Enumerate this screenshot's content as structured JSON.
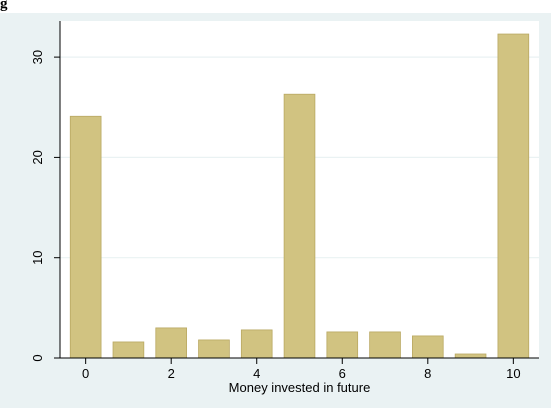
{
  "page": {
    "title": "g"
  },
  "chart_data": {
    "type": "bar",
    "x": [
      0,
      1,
      2,
      3,
      4,
      5,
      6,
      7,
      8,
      9,
      10
    ],
    "values": [
      24.1,
      1.6,
      3.0,
      1.8,
      2.8,
      26.3,
      2.6,
      2.6,
      2.2,
      0.4,
      32.3
    ],
    "xlabel": "Money invested in future",
    "ylabel": "",
    "xticks": [
      0,
      2,
      4,
      6,
      8,
      10
    ],
    "yticks": [
      0,
      10,
      20,
      30
    ],
    "xlim": [
      -0.6,
      10.6
    ],
    "ylim": [
      0,
      33.6
    ],
    "grid": true,
    "colors": {
      "bar_fill": "#d1c381",
      "bar_stroke": "#b9a862",
      "plot_background": "#ffffff",
      "outer_background": "#eaf2f3",
      "grid": "#eaf2f3",
      "axis": "#000000"
    }
  }
}
